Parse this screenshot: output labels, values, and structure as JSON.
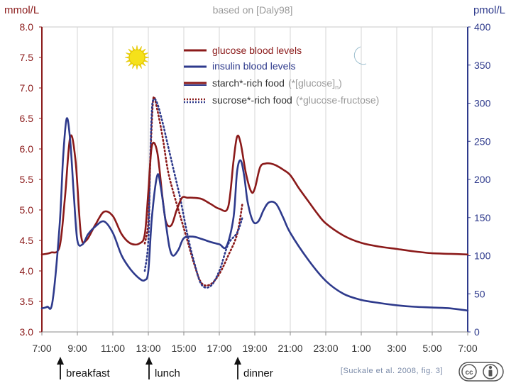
{
  "chart_data": {
    "type": "line",
    "title": "based on [Daly98]",
    "y_left_label": "mmol/L",
    "y_right_label": "pmol/L",
    "y_left_ticks": [
      "3.0",
      "3.5",
      "4.0",
      "4.5",
      "5.0",
      "5.5",
      "6.0",
      "6.5",
      "7.0",
      "7.5",
      "8.0"
    ],
    "y_right_ticks": [
      "0",
      "50",
      "100",
      "150",
      "200",
      "250",
      "300",
      "350",
      "400"
    ],
    "x_ticks": [
      "7:00",
      "9:00",
      "11:00",
      "13:00",
      "15:00",
      "17:00",
      "19:00",
      "21:00",
      "23:00",
      "1:00",
      "3:00",
      "5:00",
      "7:00"
    ],
    "ylim_left": [
      3.0,
      8.0
    ],
    "ylim_right": [
      0,
      400
    ],
    "x_range_hours": [
      7,
      31
    ],
    "grid": "vertical lines at every x tick",
    "legend": [
      {
        "label": "glucose blood levels",
        "color": "#8b1a1a",
        "style": "solid"
      },
      {
        "label": "insulin blood levels",
        "color": "#2e3a8c",
        "style": "solid"
      },
      {
        "label": "starch*-rich food",
        "note": "(*[glucose]",
        "note_sub": "n",
        "note_end": ")",
        "color": "#6b2a6b",
        "style": "solid"
      },
      {
        "label": "sucrose*-rich food",
        "note": "(*glucose-fructose)",
        "color": "#6b2a6b",
        "style": "dotted"
      }
    ],
    "legend_position": "top-center",
    "series": [
      {
        "name": "glucose blood levels",
        "axis": "left",
        "color": "#8b1a1a",
        "style": "solid",
        "x": [
          7.0,
          7.5,
          8.0,
          8.3,
          8.6,
          8.9,
          9.2,
          9.5,
          10.0,
          10.5,
          11.0,
          11.5,
          12.0,
          12.5,
          12.8,
          13.0,
          13.2,
          13.5,
          13.8,
          14.0,
          14.3,
          14.6,
          14.9,
          15.2,
          15.5,
          16.0,
          16.5,
          17.0,
          17.5,
          17.8,
          18.0,
          18.2,
          18.5,
          18.8,
          19.0,
          19.3,
          19.6,
          19.9,
          20.2,
          20.6,
          21.0,
          21.5,
          22.0,
          22.5,
          23.0,
          24.0,
          25.0,
          26.0,
          27.0,
          28.0,
          29.0,
          30.0,
          31.0
        ],
        "values": [
          4.27,
          4.3,
          4.4,
          5.2,
          6.2,
          5.8,
          4.6,
          4.5,
          4.75,
          4.97,
          4.9,
          4.6,
          4.45,
          4.45,
          4.6,
          5.3,
          6.05,
          5.95,
          5.2,
          4.8,
          4.75,
          5.0,
          5.2,
          5.2,
          5.2,
          5.18,
          5.1,
          5.02,
          5.05,
          5.8,
          6.2,
          6.1,
          5.6,
          5.3,
          5.35,
          5.7,
          5.76,
          5.76,
          5.73,
          5.66,
          5.57,
          5.35,
          5.15,
          4.95,
          4.78,
          4.58,
          4.46,
          4.4,
          4.36,
          4.32,
          4.29,
          4.28,
          4.27
        ]
      },
      {
        "name": "insulin blood levels",
        "axis": "right",
        "color": "#2e3a8c",
        "style": "solid",
        "x": [
          7.0,
          7.3,
          7.6,
          8.0,
          8.2,
          8.4,
          8.6,
          8.8,
          9.0,
          9.3,
          9.6,
          10.0,
          10.5,
          11.0,
          11.5,
          12.0,
          12.5,
          12.8,
          13.0,
          13.2,
          13.5,
          13.7,
          14.0,
          14.2,
          14.4,
          14.7,
          15.0,
          15.5,
          16.0,
          16.5,
          17.0,
          17.4,
          17.8,
          18.0,
          18.2,
          18.4,
          18.6,
          18.9,
          19.2,
          19.5,
          19.8,
          20.2,
          20.6,
          21.0,
          22.0,
          23.0,
          24.0,
          25.0,
          26.0,
          27.0,
          28.0,
          29.0,
          30.0,
          31.0
        ],
        "values": [
          31,
          33,
          40,
          140,
          230,
          280,
          250,
          180,
          120,
          115,
          128,
          138,
          145,
          130,
          100,
          82,
          70,
          68,
          80,
          150,
          205,
          190,
          140,
          110,
          100,
          108,
          123,
          125,
          122,
          118,
          115,
          112,
          150,
          210,
          225,
          205,
          170,
          145,
          145,
          160,
          170,
          168,
          150,
          130,
          95,
          67,
          50,
          42,
          38,
          35,
          33,
          32,
          31,
          28
        ]
      },
      {
        "name": "glucose blood levels (sucrose-rich food)",
        "axis": "left",
        "color": "#8b1a1a",
        "style": "dotted",
        "x": [
          12.8,
          13.0,
          13.1,
          13.2,
          13.3,
          13.5,
          13.8,
          14.1,
          14.4,
          14.8,
          15.2,
          15.6,
          16.0,
          16.5,
          17.0,
          17.5,
          18.0,
          18.3
        ],
        "values": [
          4.45,
          4.8,
          5.7,
          6.45,
          6.85,
          6.65,
          6.2,
          5.65,
          5.3,
          4.9,
          4.5,
          4.1,
          3.8,
          3.78,
          3.95,
          4.25,
          4.6,
          5.1
        ]
      },
      {
        "name": "insulin blood levels (sucrose-rich food)",
        "axis": "right",
        "color": "#2e3a8c",
        "style": "dotted",
        "x": [
          12.8,
          13.0,
          13.1,
          13.2,
          13.3,
          13.5,
          13.8,
          14.1,
          14.4,
          14.8,
          15.2,
          15.6,
          16.0,
          16.5,
          17.0,
          17.5,
          18.0,
          18.3
        ],
        "values": [
          80,
          120,
          220,
          290,
          305,
          300,
          275,
          245,
          215,
          175,
          128,
          90,
          62,
          60,
          80,
          115,
          130,
          150
        ]
      }
    ],
    "annotations": [
      {
        "label": "breakfast",
        "x": 8.0
      },
      {
        "label": "lunch",
        "x": 13.0
      },
      {
        "label": "dinner",
        "x": 18.0
      }
    ],
    "citation": "[Suckale et al. 2008, fig. 3]"
  },
  "icons": {
    "sun": "sun-icon",
    "moon": "crescent-moon-icon",
    "license": "creative-commons-by-icon"
  }
}
